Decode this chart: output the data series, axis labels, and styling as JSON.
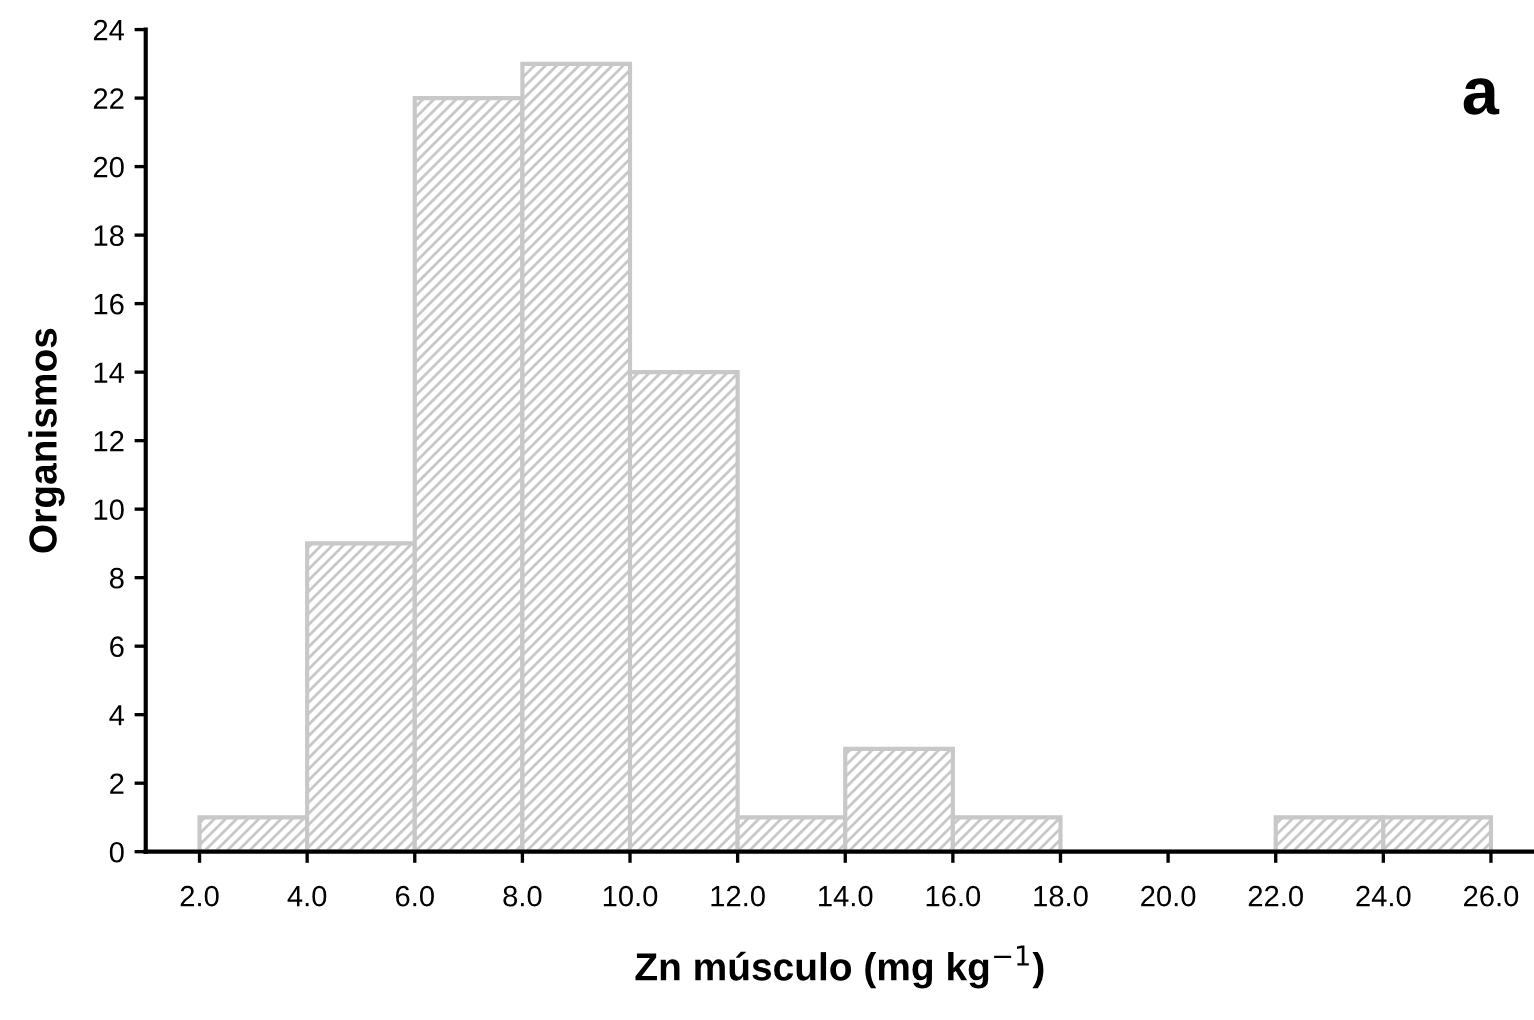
{
  "chart_data": {
    "type": "histogram",
    "xlabel": "Zn músculo (mg kg$^{−1}$)",
    "ylabel": "Organismos",
    "bins": [
      2,
      4,
      6,
      8,
      10,
      12,
      14,
      16,
      18,
      20,
      22,
      24,
      26
    ],
    "values": [
      1,
      9,
      22,
      23,
      14,
      1,
      3,
      1,
      0,
      0,
      1,
      1
    ],
    "color": "#c8c8c8",
    "xlim": [
      1,
      26.8
    ],
    "xticks": [
      {
        "value": 2,
        "label": "2.0"
      },
      {
        "value": 4,
        "label": "4.0"
      },
      {
        "value": 6,
        "label": "6.0"
      },
      {
        "value": 8,
        "label": "8.0"
      },
      {
        "value": 10,
        "label": "10.0"
      },
      {
        "value": 12,
        "label": "12.0"
      },
      {
        "value": 14,
        "label": "14.0"
      },
      {
        "value": 16,
        "label": "16.0"
      },
      {
        "value": 18,
        "label": "18.0"
      },
      {
        "value": 20,
        "label": "20.0"
      },
      {
        "value": 22,
        "label": "22.0"
      },
      {
        "value": 24,
        "label": "24.0"
      },
      {
        "value": 26,
        "label": "26.0"
      }
    ],
    "ylim": [
      0,
      24
    ],
    "yticks": [
      0,
      2,
      4,
      6,
      8,
      10,
      12,
      14,
      16,
      18,
      20,
      22,
      24
    ],
    "grid": false,
    "annotations": [
      "a"
    ]
  }
}
